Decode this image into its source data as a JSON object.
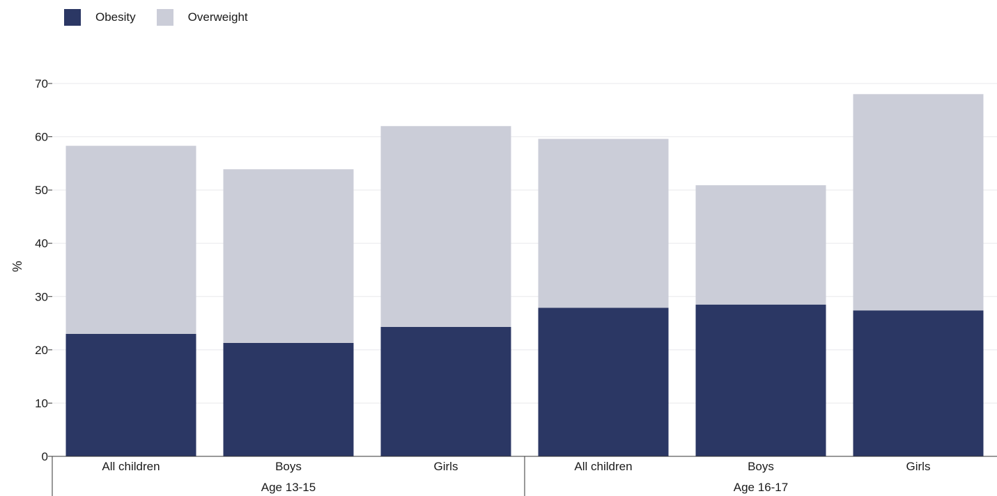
{
  "legend": {
    "obesity": "Obesity",
    "overweight": "Overweight"
  },
  "colors": {
    "obesity": "#2b3764",
    "overweight": "#cbcdd8",
    "grid": "#e8e8ec",
    "axis": "#333333"
  },
  "chart_data": {
    "type": "bar",
    "stacked": true,
    "ylabel": "%",
    "xlabel": "",
    "ylim": [
      0,
      70
    ],
    "yticks": [
      0,
      10,
      20,
      30,
      40,
      50,
      60,
      70
    ],
    "grid": true,
    "legend_position": "top-left",
    "groups": [
      "Age 13-15",
      "Age 16-17"
    ],
    "categories": [
      "All children",
      "Boys",
      "Girls",
      "All children",
      "Boys",
      "Girls"
    ],
    "category_group": [
      0,
      0,
      0,
      1,
      1,
      1
    ],
    "series": [
      {
        "name": "Obesity",
        "values": [
          23.0,
          21.3,
          24.3,
          27.9,
          28.5,
          27.4
        ]
      },
      {
        "name": "Overweight",
        "values": [
          35.3,
          32.6,
          37.7,
          31.7,
          22.4,
          40.6
        ]
      }
    ]
  }
}
